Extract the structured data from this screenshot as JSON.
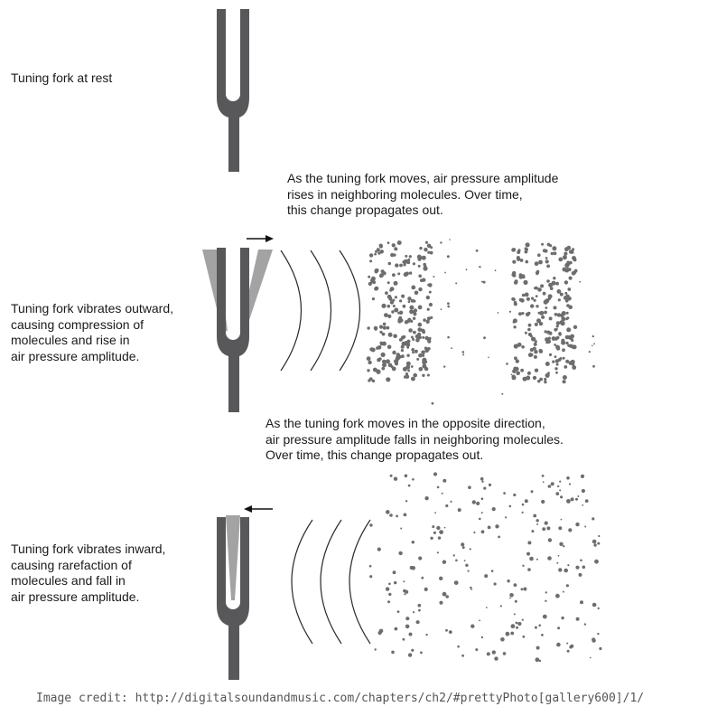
{
  "labels": {
    "rest": "Tuning fork at rest",
    "compression_caption": "As the tuning fork moves, air pressure amplitude\nrises in neighboring molecules.  Over time,\nthis change propagates out.",
    "outward": "Tuning fork vibrates outward,\ncausing compression of\nmolecules and rise in\nair pressure amplitude.",
    "rarefaction_caption": "As the tuning fork moves in the opposite direction,\nair pressure amplitude falls in neighboring molecules.\nOver time, this change propagates out.",
    "inward": "Tuning fork vibrates inward,\ncausing rarefaction of\nmolecules and fall in\nair pressure amplitude."
  },
  "credit": "Image credit: http://digitalsoundandmusic.com/chapters/ch2/#prettyPhoto[gallery600]/1/",
  "colors": {
    "fork": "#58585a",
    "fork_ghost": "#a3a3a3",
    "molecule": "#6d6d6d",
    "arc": "#2a2a2a",
    "text": "#1a1a1a"
  },
  "icons": [
    "right-arrow-icon",
    "left-arrow-icon"
  ]
}
